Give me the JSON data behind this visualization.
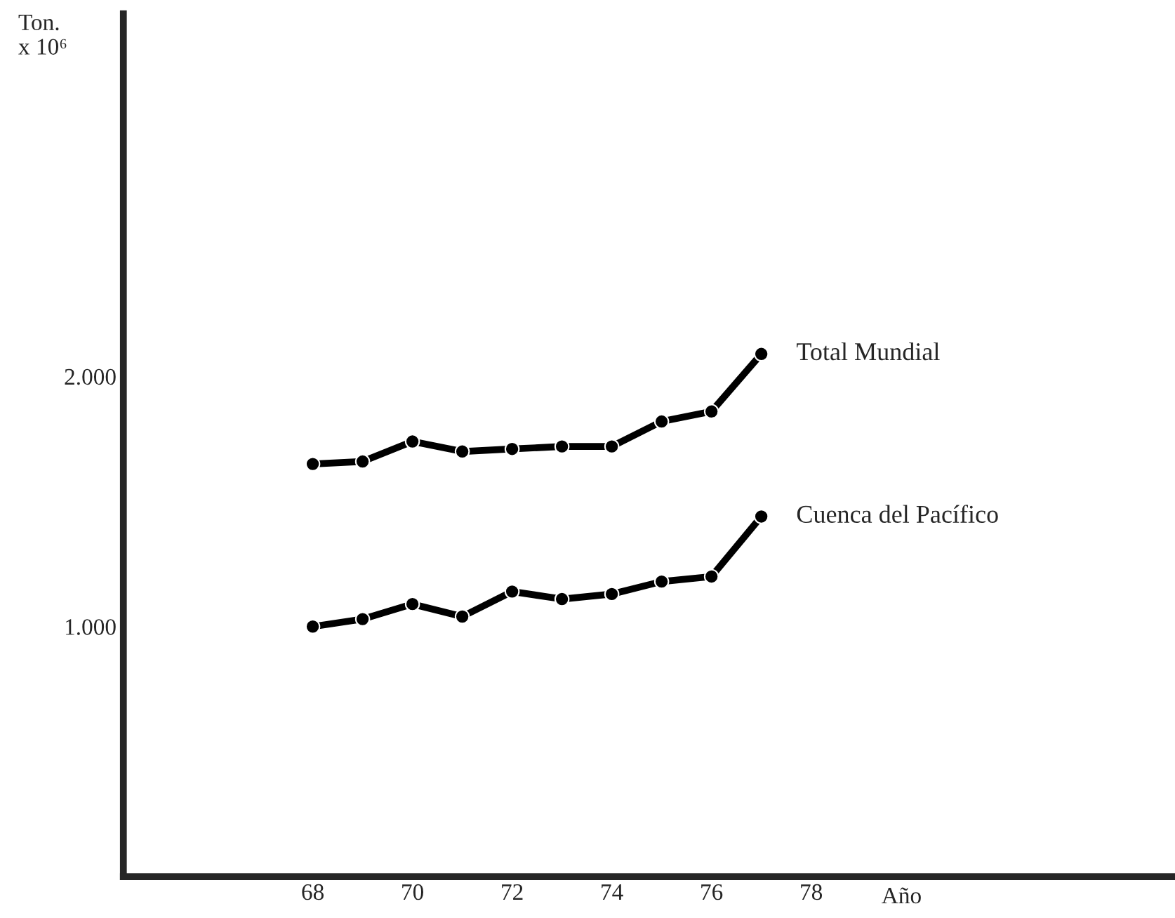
{
  "chart_data": {
    "type": "line",
    "ylabel": "Ton.\nx 10⁶",
    "xlabel": "Año",
    "x": [
      68,
      69,
      70,
      71,
      72,
      73,
      74,
      75,
      76,
      77
    ],
    "series": [
      {
        "name": "Total Mundial",
        "color": "#000000",
        "values": [
          1650,
          1660,
          1740,
          1700,
          1710,
          1720,
          1720,
          1820,
          1860,
          2090
        ]
      },
      {
        "name": "Cuenca del Pacífico",
        "color": "#000000",
        "values": [
          1000,
          1030,
          1090,
          1040,
          1140,
          1110,
          1130,
          1180,
          1200,
          1440
        ]
      }
    ],
    "xlim": [
      64.2,
      85.3
    ],
    "ylim": [
      0,
      3450
    ],
    "xticks": [
      68,
      70,
      72,
      74,
      76,
      78
    ],
    "yticks": [
      {
        "value": 1000,
        "label": "1.000"
      },
      {
        "value": 2000,
        "label": "2.000"
      }
    ],
    "marker": "circle",
    "line_style": "solid",
    "grid": false,
    "legend": false
  }
}
